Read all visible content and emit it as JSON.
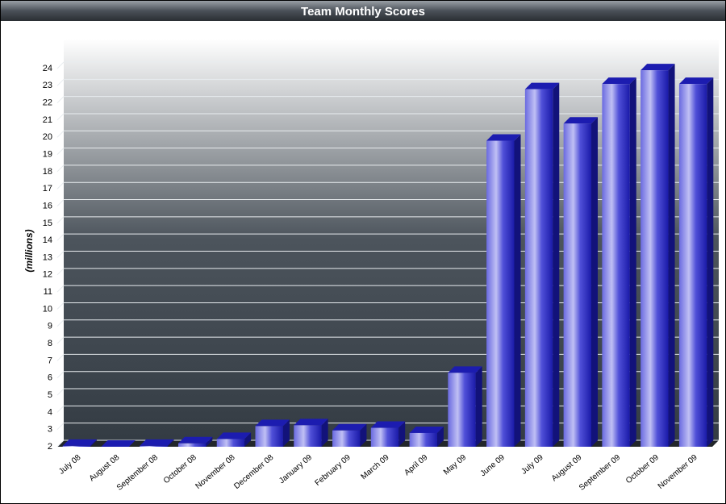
{
  "chart_data": {
    "type": "bar3d",
    "title": "Team Monthly Scores",
    "y_label": "(millions)",
    "categories": [
      "July 08",
      "August 08",
      "September 08",
      "October 08",
      "November 08",
      "December 08",
      "January 09",
      "February 09",
      "March 09",
      "April 09",
      "May 09",
      "June 09",
      "July 09",
      "August 09",
      "September 09",
      "October 09",
      "November 09"
    ],
    "values": [
      2.05,
      2.0,
      2.05,
      2.2,
      2.45,
      3.2,
      3.25,
      2.95,
      3.1,
      2.8,
      6.3,
      19.8,
      22.8,
      20.8,
      23.1,
      23.9,
      23.1
    ],
    "color": "#2a2ad0",
    "ylim": [
      2,
      24
    ],
    "yticks": [
      2,
      3,
      4,
      5,
      6,
      7,
      8,
      9,
      10,
      11,
      12,
      13,
      14,
      15,
      16,
      17,
      18,
      19,
      20,
      21,
      22,
      23,
      24
    ],
    "grid": true
  }
}
